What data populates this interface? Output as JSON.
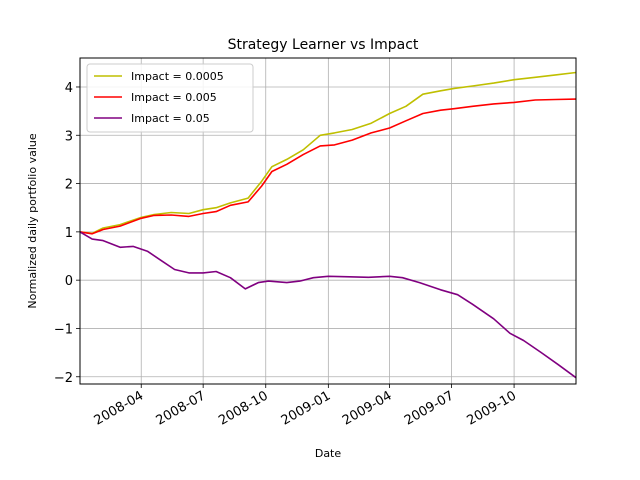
{
  "chart_data": {
    "type": "line",
    "title": "Strategy Learner vs Impact",
    "xlabel": "Date",
    "ylabel": "Normalized daily portfolio value",
    "x_range": [
      "2008-01-02",
      "2009-12-31"
    ],
    "ylim": [
      -2.15,
      4.6
    ],
    "x_ticks": [
      {
        "date": "2008-04-01",
        "label": "2008-04"
      },
      {
        "date": "2008-07-01",
        "label": "2008-07"
      },
      {
        "date": "2008-10-01",
        "label": "2008-10"
      },
      {
        "date": "2009-01-01",
        "label": "2009-01"
      },
      {
        "date": "2009-04-01",
        "label": "2009-04"
      },
      {
        "date": "2009-07-01",
        "label": "2009-07"
      },
      {
        "date": "2009-10-01",
        "label": "2009-10"
      }
    ],
    "y_ticks": [
      {
        "value": -2,
        "label": "−2"
      },
      {
        "value": -1,
        "label": "−1"
      },
      {
        "value": 0,
        "label": "0"
      },
      {
        "value": 1,
        "label": "1"
      },
      {
        "value": 2,
        "label": "2"
      },
      {
        "value": 3,
        "label": "3"
      },
      {
        "value": 4,
        "label": "4"
      }
    ],
    "grid": true,
    "legend_position": "top-left",
    "series": [
      {
        "name": "Impact = 0.0005",
        "color": "#bfbf00",
        "points": [
          [
            "2008-01-02",
            1.0
          ],
          [
            "2008-01-20",
            0.97
          ],
          [
            "2008-02-05",
            1.08
          ],
          [
            "2008-03-01",
            1.15
          ],
          [
            "2008-04-01",
            1.3
          ],
          [
            "2008-04-20",
            1.36
          ],
          [
            "2008-05-15",
            1.4
          ],
          [
            "2008-06-10",
            1.38
          ],
          [
            "2008-07-01",
            1.46
          ],
          [
            "2008-07-20",
            1.5
          ],
          [
            "2008-08-10",
            1.6
          ],
          [
            "2008-09-05",
            1.7
          ],
          [
            "2008-09-25",
            2.05
          ],
          [
            "2008-10-10",
            2.35
          ],
          [
            "2008-11-01",
            2.5
          ],
          [
            "2008-11-25",
            2.7
          ],
          [
            "2008-12-20",
            3.0
          ],
          [
            "2009-01-10",
            3.05
          ],
          [
            "2009-02-05",
            3.12
          ],
          [
            "2009-03-05",
            3.25
          ],
          [
            "2009-04-01",
            3.45
          ],
          [
            "2009-04-25",
            3.6
          ],
          [
            "2009-05-20",
            3.85
          ],
          [
            "2009-06-15",
            3.92
          ],
          [
            "2009-07-05",
            3.97
          ],
          [
            "2009-08-01",
            4.02
          ],
          [
            "2009-09-01",
            4.08
          ],
          [
            "2009-10-01",
            4.15
          ],
          [
            "2009-11-01",
            4.2
          ],
          [
            "2009-12-01",
            4.25
          ],
          [
            "2009-12-31",
            4.3
          ]
        ]
      },
      {
        "name": "Impact = 0.005",
        "color": "#ff0000",
        "points": [
          [
            "2008-01-02",
            1.0
          ],
          [
            "2008-01-20",
            0.96
          ],
          [
            "2008-02-05",
            1.05
          ],
          [
            "2008-03-01",
            1.12
          ],
          [
            "2008-04-01",
            1.28
          ],
          [
            "2008-04-20",
            1.34
          ],
          [
            "2008-05-15",
            1.35
          ],
          [
            "2008-06-10",
            1.32
          ],
          [
            "2008-07-01",
            1.38
          ],
          [
            "2008-07-20",
            1.42
          ],
          [
            "2008-08-10",
            1.55
          ],
          [
            "2008-09-05",
            1.62
          ],
          [
            "2008-09-25",
            1.95
          ],
          [
            "2008-10-10",
            2.25
          ],
          [
            "2008-11-01",
            2.4
          ],
          [
            "2008-11-25",
            2.6
          ],
          [
            "2008-12-20",
            2.78
          ],
          [
            "2009-01-10",
            2.8
          ],
          [
            "2009-02-05",
            2.9
          ],
          [
            "2009-03-05",
            3.05
          ],
          [
            "2009-04-01",
            3.15
          ],
          [
            "2009-04-25",
            3.3
          ],
          [
            "2009-05-20",
            3.45
          ],
          [
            "2009-06-15",
            3.52
          ],
          [
            "2009-07-05",
            3.55
          ],
          [
            "2009-08-01",
            3.6
          ],
          [
            "2009-09-01",
            3.65
          ],
          [
            "2009-10-01",
            3.68
          ],
          [
            "2009-11-01",
            3.73
          ],
          [
            "2009-12-01",
            3.74
          ],
          [
            "2009-12-31",
            3.75
          ]
        ]
      },
      {
        "name": "Impact = 0.05",
        "color": "#800080",
        "points": [
          [
            "2008-01-02",
            1.0
          ],
          [
            "2008-01-20",
            0.85
          ],
          [
            "2008-02-05",
            0.82
          ],
          [
            "2008-03-01",
            0.68
          ],
          [
            "2008-03-20",
            0.7
          ],
          [
            "2008-04-10",
            0.6
          ],
          [
            "2008-05-01",
            0.4
          ],
          [
            "2008-05-20",
            0.22
          ],
          [
            "2008-06-10",
            0.15
          ],
          [
            "2008-07-01",
            0.15
          ],
          [
            "2008-07-20",
            0.18
          ],
          [
            "2008-08-10",
            0.05
          ],
          [
            "2008-09-01",
            -0.18
          ],
          [
            "2008-09-20",
            -0.05
          ],
          [
            "2008-10-05",
            -0.02
          ],
          [
            "2008-11-01",
            -0.05
          ],
          [
            "2008-11-20",
            -0.02
          ],
          [
            "2008-12-10",
            0.05
          ],
          [
            "2009-01-01",
            0.08
          ],
          [
            "2009-02-01",
            0.07
          ],
          [
            "2009-03-01",
            0.06
          ],
          [
            "2009-04-01",
            0.08
          ],
          [
            "2009-04-20",
            0.05
          ],
          [
            "2009-05-15",
            -0.05
          ],
          [
            "2009-06-15",
            -0.2
          ],
          [
            "2009-07-10",
            -0.3
          ],
          [
            "2009-08-01",
            -0.5
          ],
          [
            "2009-09-01",
            -0.8
          ],
          [
            "2009-09-25",
            -1.1
          ],
          [
            "2009-10-15",
            -1.25
          ],
          [
            "2009-11-10",
            -1.5
          ],
          [
            "2009-12-05",
            -1.75
          ],
          [
            "2009-12-31",
            -2.02
          ]
        ]
      }
    ]
  }
}
